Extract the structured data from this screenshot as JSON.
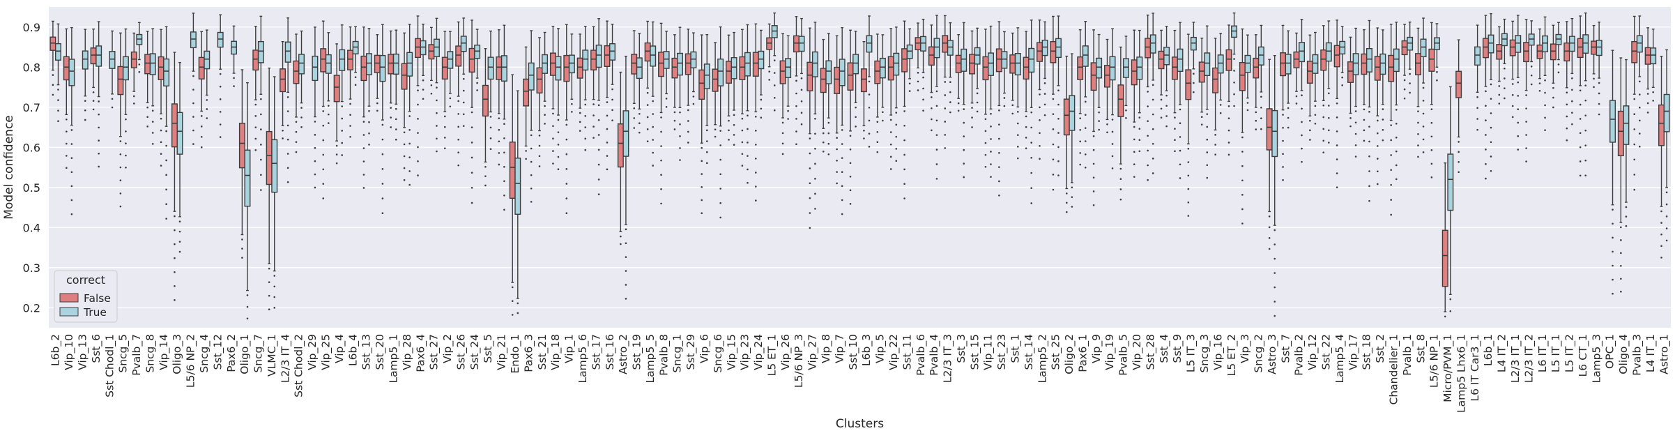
{
  "chart_data": {
    "type": "box",
    "xlabel": "Clusters",
    "ylabel": "Model confidence",
    "ylim": [
      0.15,
      0.95
    ],
    "yticks": [
      0.2,
      0.3,
      0.4,
      0.5,
      0.6,
      0.7,
      0.8,
      0.9
    ],
    "grid": true,
    "legend_placement": "lower-left",
    "legend": {
      "title": "correct",
      "entries": [
        {
          "name": "False",
          "color": "#e07f80"
        },
        {
          "name": "True",
          "color": "#a9d4df"
        }
      ]
    },
    "colors": {
      "background": "#eaeaf2",
      "false": "#e07f80",
      "true": "#a9d4df",
      "line": "#3d3d3d"
    },
    "categories": [
      "L6b_2",
      "Vip_10",
      "Vip_13",
      "Sst_6",
      "Sst Chodl_1",
      "Sncg_5",
      "Pvalb_7",
      "Sncg_8",
      "Vip_14",
      "Oligo_3",
      "L5/6 NP_2",
      "Sncg_4",
      "Sst_12",
      "Pax6_2",
      "Oligo_1",
      "Sncg_7",
      "VLMC_1",
      "L2/3 IT_4",
      "Sst Chodl_2",
      "Vip_29",
      "Vip_25",
      "Vip_4",
      "L6b_4",
      "Sst_13",
      "Sst_20",
      "Lamp5_1",
      "Vip_28",
      "Pax6_4",
      "Sst_27",
      "Vip_2",
      "Sst_26",
      "Sst_24",
      "Sst_5",
      "Vip_21",
      "Endo_1",
      "Pax6_3",
      "Sst_21",
      "Vip_18",
      "Vip_1",
      "Lamp5_6",
      "Sst_17",
      "Sst_16",
      "Astro_2",
      "Sst_19",
      "Lamp5_5",
      "Pvalb_8",
      "Sncg_1",
      "Sst_29",
      "Vip_6",
      "Sncg_6",
      "Vip_15",
      "Vip_23",
      "Vip_24",
      "L5 ET_1",
      "Vip_26",
      "L5/6 NP_3",
      "Vip_27",
      "Vip_8",
      "Vip_7",
      "Sst_10",
      "L6b_3",
      "Vip_5",
      "Vip_22",
      "Sst_11",
      "Pvalb_6",
      "Pvalb_4",
      "L2/3 IT_3",
      "Sst_3",
      "Sst_15",
      "Vip_11",
      "Sst_23",
      "Sst_1",
      "Sst_14",
      "Lamp5_2",
      "Sst_25",
      "Oligo_2",
      "Pax6_1",
      "Vip_9",
      "Vip_19",
      "Pvalb_5",
      "Vip_20",
      "Sst_28",
      "Sst_4",
      "Sst_9",
      "L5 IT_3",
      "Sncg_3",
      "Vip_16",
      "L5 ET_2",
      "Vip_3",
      "Sncg_2",
      "Astro_3",
      "Sst_7",
      "Pvalb_2",
      "Vip_12",
      "Sst_22",
      "Lamp5_4",
      "Vip_17",
      "Sst_18",
      "Sst_2",
      "Chandelier_1",
      "Pvalb_1",
      "Sst_8",
      "L5/6 NP_1",
      "Micro/PVM_1",
      "Lamp5 Lhx6_1",
      "L6 IT Car3_1",
      "L6b_1",
      "L4 IT_2",
      "L2/3 IT_1",
      "L2/3 IT_2",
      "L6 IT_1",
      "L5 IT_1",
      "L5 IT_2",
      "L6 CT_1",
      "Lamp5_3",
      "OPC_1",
      "Oligo_4",
      "Pvalb_3",
      "L4 IT_1",
      "Astro_1"
    ],
    "series": [
      {
        "name": "False",
        "median": [
          0.86,
          0.8,
          null,
          0.83,
          null,
          0.77,
          0.82,
          0.81,
          0.8,
          0.66,
          null,
          0.8,
          null,
          null,
          0.61,
          0.82,
          0.58,
          0.77,
          0.79,
          null,
          0.82,
          0.75,
          0.82,
          0.8,
          0.81,
          0.81,
          0.78,
          0.85,
          0.84,
          0.8,
          0.83,
          0.82,
          0.72,
          0.8,
          0.55,
          0.74,
          0.77,
          0.81,
          0.8,
          0.8,
          0.82,
          0.83,
          0.61,
          0.81,
          0.84,
          0.81,
          0.8,
          0.81,
          0.76,
          0.77,
          0.79,
          0.8,
          0.81,
          0.86,
          0.79,
          0.86,
          0.78,
          0.77,
          0.77,
          0.78,
          0.77,
          0.79,
          0.8,
          0.82,
          0.86,
          0.83,
          0.86,
          0.81,
          0.81,
          0.8,
          0.82,
          0.81,
          0.8,
          0.84,
          0.84,
          0.68,
          0.8,
          0.78,
          0.78,
          0.72,
          0.79,
          0.85,
          0.82,
          0.8,
          0.76,
          0.79,
          0.77,
          0.82,
          0.78,
          0.8,
          0.65,
          0.81,
          0.82,
          0.79,
          0.82,
          0.83,
          0.79,
          0.81,
          0.8,
          0.8,
          0.85,
          0.81,
          0.82,
          0.33,
          0.76,
          null,
          0.85,
          0.84,
          0.85,
          0.84,
          0.84,
          0.84,
          0.84,
          0.85,
          0.85,
          null,
          0.64,
          0.84,
          0.83,
          0.66
        ]
      },
      {
        "name": "True",
        "median": [
          0.84,
          0.79,
          0.82,
          0.83,
          0.82,
          0.8,
          0.87,
          0.81,
          0.79,
          0.64,
          0.87,
          0.82,
          0.87,
          0.85,
          0.53,
          0.84,
          0.56,
          0.84,
          0.81,
          0.8,
          0.81,
          0.82,
          0.85,
          0.81,
          0.8,
          0.81,
          0.81,
          0.85,
          0.85,
          0.82,
          0.86,
          0.84,
          0.8,
          0.8,
          0.51,
          0.78,
          0.81,
          0.8,
          0.81,
          0.82,
          0.83,
          0.84,
          0.64,
          0.8,
          0.83,
          0.82,
          0.81,
          0.82,
          0.78,
          0.79,
          0.8,
          0.81,
          0.82,
          0.89,
          0.8,
          0.86,
          0.81,
          0.79,
          0.79,
          0.81,
          0.86,
          0.8,
          0.81,
          0.84,
          0.86,
          0.85,
          0.85,
          0.82,
          0.83,
          0.81,
          0.82,
          0.81,
          0.82,
          0.85,
          0.85,
          0.69,
          0.83,
          0.8,
          0.8,
          0.8,
          0.8,
          0.86,
          0.83,
          0.82,
          0.86,
          0.81,
          0.81,
          0.89,
          0.81,
          0.83,
          0.64,
          0.81,
          0.84,
          0.81,
          0.84,
          0.85,
          0.81,
          0.82,
          0.81,
          0.82,
          0.86,
          0.85,
          0.86,
          0.52,
          null,
          0.83,
          0.86,
          0.87,
          0.86,
          0.87,
          0.86,
          0.87,
          0.86,
          0.86,
          0.85,
          0.67,
          0.66,
          0.86,
          0.83,
          0.69
        ]
      }
    ]
  }
}
